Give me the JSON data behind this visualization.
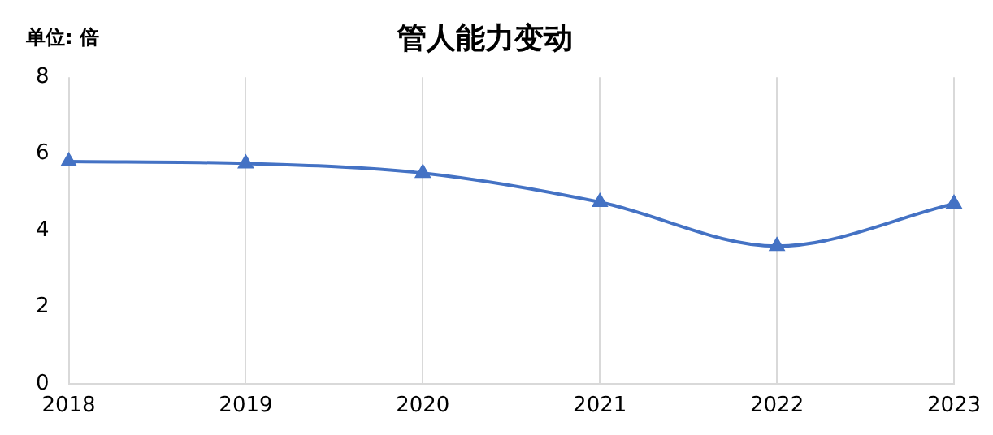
{
  "chart_data": {
    "type": "line",
    "title": "管人能力变动",
    "annotations": [
      "单位: 倍"
    ],
    "categories": [
      "2018",
      "2019",
      "2020",
      "2021",
      "2022",
      "2023"
    ],
    "series": [
      {
        "color": "#4472c4",
        "values": [
          5.8,
          5.75,
          5.5,
          4.74,
          3.59,
          4.7
        ]
      }
    ],
    "ylim": [
      0,
      8
    ],
    "yticks": [
      0,
      2,
      4,
      6,
      8
    ],
    "grid": "x",
    "legend": false,
    "marker": "triangle",
    "line_style": "solid"
  }
}
